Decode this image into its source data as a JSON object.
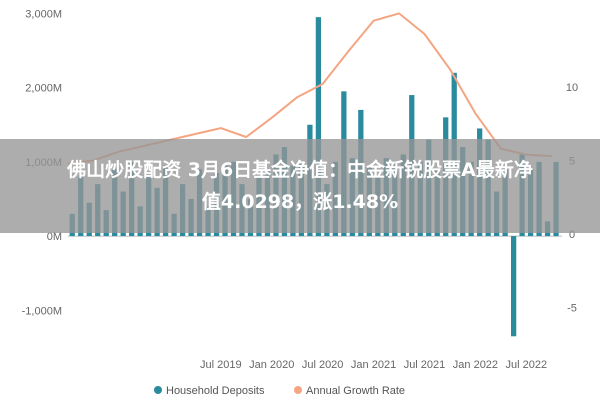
{
  "banner": {
    "line1": "佛山炒股配资 3月6日基金净值：中金新锐股票A最新净",
    "line2": "值4.0298，涨1.48%"
  },
  "colors": {
    "bar": "#2a8a9e",
    "line": "#f4a582",
    "zero_line": "#bbbbbb"
  },
  "chart_data": {
    "type": "bar+line",
    "y_left": {
      "ticks": [
        3000,
        2000,
        1000,
        0,
        -1000
      ],
      "tick_labels": [
        "3,000M",
        "2,000M",
        "1,000M",
        "0M",
        "-1,000M"
      ],
      "range": [
        -1400,
        3100
      ]
    },
    "y_right": {
      "ticks": [
        10,
        5,
        0,
        -5
      ],
      "tick_labels": [
        "10",
        "5",
        "0",
        "-5"
      ],
      "range": [
        -7.2,
        15.5
      ]
    },
    "x_axis": {
      "ticks": [
        "2019-07",
        "2020-01",
        "2020-07",
        "2021-01",
        "2021-07",
        "2022-01",
        "2022-07"
      ],
      "tick_labels": [
        "Jul 2019",
        "Jan 2020",
        "Jul 2020",
        "Jan 2021",
        "Jul 2021",
        "Jan 2022",
        "Jul 2022"
      ]
    },
    "legend": {
      "position": "bottom",
      "items": [
        "Household Deposits",
        "Annual Growth Rate"
      ]
    },
    "series": [
      {
        "name": "Household Deposits",
        "type": "bar",
        "x": [
          "2018-01",
          "2018-02",
          "2018-03",
          "2018-04",
          "2018-05",
          "2018-06",
          "2018-07",
          "2018-08",
          "2018-09",
          "2018-10",
          "2018-11",
          "2018-12",
          "2019-01",
          "2019-02",
          "2019-03",
          "2019-04",
          "2019-05",
          "2019-06",
          "2019-07",
          "2019-08",
          "2019-09",
          "2019-10",
          "2019-11",
          "2019-12",
          "2020-01",
          "2020-02",
          "2020-03",
          "2020-04",
          "2020-05",
          "2020-06",
          "2020-07",
          "2020-08",
          "2020-09",
          "2020-10",
          "2020-11",
          "2020-12",
          "2021-01",
          "2021-02",
          "2021-03",
          "2021-04",
          "2021-05",
          "2021-06",
          "2021-07",
          "2021-08",
          "2021-09",
          "2021-10",
          "2021-11",
          "2021-12",
          "2022-01",
          "2022-02",
          "2022-03",
          "2022-04",
          "2022-05",
          "2022-06",
          "2022-07",
          "2022-08",
          "2022-09",
          "2022-10"
        ],
        "values": [
          300,
          800,
          450,
          700,
          350,
          900,
          600,
          1000,
          400,
          800,
          650,
          950,
          300,
          700,
          500,
          900,
          400,
          850,
          950,
          1000,
          700,
          500,
          800,
          900,
          1100,
          1200,
          950,
          1000,
          1500,
          2950,
          700,
          1000,
          1950,
          1050,
          1700,
          950,
          800,
          1050,
          1000,
          1100,
          1900,
          1000,
          1300,
          900,
          1600,
          2200,
          1200,
          1000,
          1450,
          1300,
          600,
          900,
          -1350,
          1100,
          900,
          1000,
          200,
          1000
        ]
      },
      {
        "name": "Annual Growth Rate",
        "type": "line",
        "x": [
          "2018-01",
          "2018-04",
          "2018-07",
          "2018-10",
          "2019-01",
          "2019-04",
          "2019-07",
          "2019-10",
          "2020-01",
          "2020-04",
          "2020-07",
          "2020-10",
          "2021-01",
          "2021-04",
          "2021-07",
          "2021-10",
          "2022-01",
          "2022-04",
          "2022-07",
          "2022-10"
        ],
        "values": [
          4.8,
          5.0,
          5.6,
          6.0,
          6.4,
          6.8,
          7.2,
          6.6,
          7.9,
          9.3,
          10.2,
          12.4,
          14.5,
          15.0,
          13.6,
          11.2,
          8.2,
          5.8,
          5.4,
          5.3
        ]
      }
    ]
  }
}
